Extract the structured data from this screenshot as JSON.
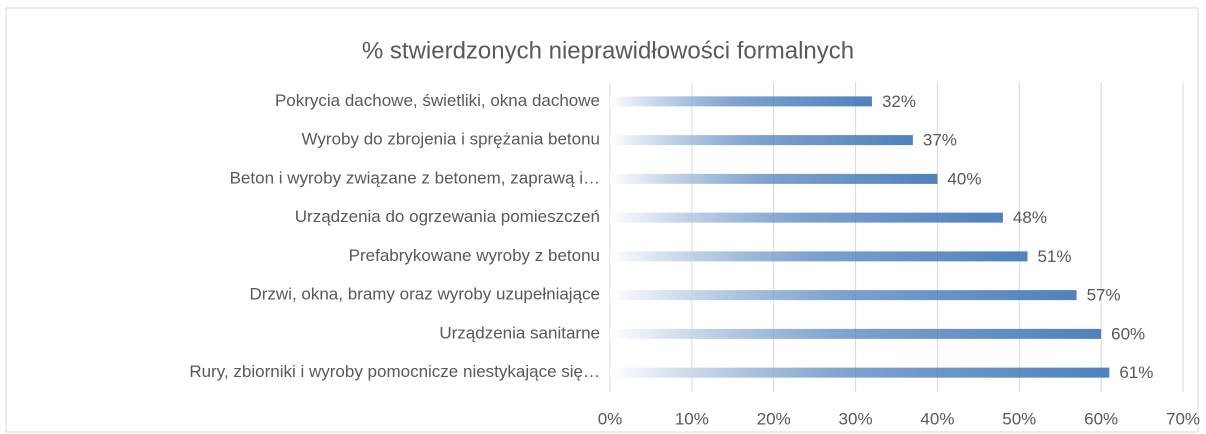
{
  "chart_data": {
    "type": "bar",
    "orientation": "horizontal",
    "title": "% stwierdzonych nieprawidłowości formalnych",
    "categories": [
      "Pokrycia dachowe, świetliki, okna dachowe",
      "Wyroby do zbrojenia i sprężania betonu",
      "Beton i wyroby związane z betonem, zaprawą i…",
      "Urządzenia do ogrzewania pomieszczeń",
      "Prefabrykowane wyroby z betonu",
      "Drzwi, okna, bramy oraz wyroby uzupełniające",
      "Urządzenia sanitarne",
      "Rury, zbiorniki i wyroby pomocnicze niestykające się…"
    ],
    "values": [
      32,
      37,
      40,
      48,
      51,
      57,
      60,
      61
    ],
    "value_labels": [
      "32%",
      "37%",
      "40%",
      "48%",
      "51%",
      "57%",
      "60%",
      "61%"
    ],
    "color": "#4f81bd",
    "xlim": [
      0,
      70
    ],
    "xticks": [
      {
        "value": 0,
        "label": "0%"
      },
      {
        "value": 10,
        "label": "10%"
      },
      {
        "value": 20,
        "label": "20%"
      },
      {
        "value": 30,
        "label": "30%"
      },
      {
        "value": 40,
        "label": "40%"
      },
      {
        "value": 50,
        "label": "50%"
      },
      {
        "value": 60,
        "label": "60%"
      },
      {
        "value": 70,
        "label": "70%"
      }
    ],
    "grid": true
  }
}
